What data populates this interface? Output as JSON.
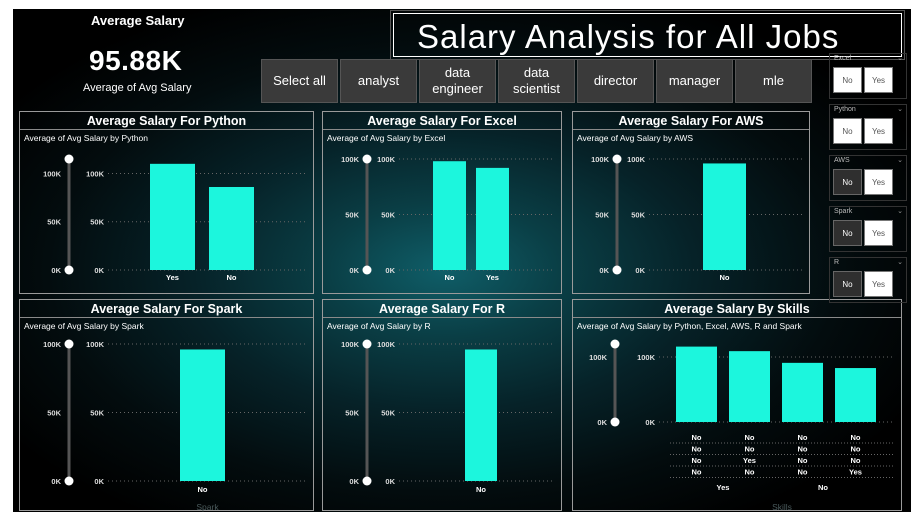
{
  "kpi": {
    "title": "Average Salary",
    "value": "95.88K",
    "subtitle": "Average of Avg Salary"
  },
  "page_title": "Salary Analysis for All Jobs",
  "job_buttons": [
    "Select all",
    "analyst",
    "data\nengineer",
    "data\nscientist",
    "director",
    "manager",
    "mle"
  ],
  "skill_slicers": [
    {
      "label": "Excel",
      "options": [
        "No",
        "Yes"
      ],
      "selected": []
    },
    {
      "label": "Python",
      "options": [
        "No",
        "Yes"
      ],
      "selected": []
    },
    {
      "label": "AWS",
      "options": [
        "No",
        "Yes"
      ],
      "selected": [
        "No"
      ]
    },
    {
      "label": "Spark",
      "options": [
        "No",
        "Yes"
      ],
      "selected": [
        "No"
      ]
    },
    {
      "label": "R",
      "options": [
        "No",
        "Yes"
      ],
      "selected": [
        "No"
      ]
    }
  ],
  "colors": {
    "bar": "#1cf6dd",
    "slider": "#555555"
  },
  "panels": [
    {
      "title": "Average Salary For Python",
      "subtitle": "Average of Avg Salary by Python"
    },
    {
      "title": "Average Salary For Excel",
      "subtitle": "Average of Avg Salary by Excel"
    },
    {
      "title": "Average Salary For AWS",
      "subtitle": "Average of Avg Salary by AWS"
    },
    {
      "title": "Average Salary For Spark",
      "subtitle": "Average of Avg Salary by Spark"
    },
    {
      "title": "Average Salary For R",
      "subtitle": "Average of Avg Salary by R"
    },
    {
      "title": "Average Salary By Skills",
      "subtitle": "Average of Avg Salary by Python, Excel, AWS, R and Spark"
    }
  ],
  "chart_data": [
    {
      "type": "bar",
      "title": "Average Salary For Python",
      "categories": [
        "Yes",
        "No"
      ],
      "values": [
        110000,
        86000
      ],
      "ylim": [
        0,
        115000
      ],
      "yticks": [
        "0K",
        "50K",
        "100K"
      ],
      "slider_ticks": [
        "0K",
        "50K",
        "100K"
      ],
      "xlabel": "",
      "grid": true
    },
    {
      "type": "bar",
      "title": "Average Salary For Excel",
      "categories": [
        "No",
        "Yes"
      ],
      "values": [
        98000,
        92000
      ],
      "ylim": [
        0,
        100000
      ],
      "yticks": [
        "0K",
        "50K",
        "100K"
      ],
      "slider_ticks": [
        "0K",
        "50K",
        "100K"
      ],
      "xlabel": "",
      "grid": true
    },
    {
      "type": "bar",
      "title": "Average Salary For AWS",
      "categories": [
        "No"
      ],
      "values": [
        96000
      ],
      "ylim": [
        0,
        100000
      ],
      "yticks": [
        "0K",
        "50K",
        "100K"
      ],
      "slider_ticks": [
        "0K",
        "50K",
        "100K"
      ],
      "xlabel": "",
      "grid": true
    },
    {
      "type": "bar",
      "title": "Average Salary For Spark",
      "categories": [
        "No"
      ],
      "values": [
        96000
      ],
      "ylim": [
        0,
        100000
      ],
      "yticks": [
        "0K",
        "50K",
        "100K"
      ],
      "slider_ticks": [
        "0K",
        "50K",
        "100K"
      ],
      "xlabel": "Spark",
      "grid": true
    },
    {
      "type": "bar",
      "title": "Average Salary For R",
      "categories": [
        "No"
      ],
      "values": [
        96000
      ],
      "ylim": [
        0,
        100000
      ],
      "yticks": [
        "0K",
        "50K",
        "100K"
      ],
      "slider_ticks": [
        "0K",
        "50K",
        "100K"
      ],
      "xlabel": "",
      "grid": true
    },
    {
      "type": "bar",
      "title": "Average Salary By Skills",
      "categories": [
        "No/No/No/No/Yes",
        "No/No/Yes/No/Yes",
        "No/No/No/No/No",
        "No/No/No/Yes/No"
      ],
      "category_levels": [
        [
          "No",
          "No",
          "No",
          "No"
        ],
        [
          "No",
          "No",
          "No",
          "No"
        ],
        [
          "No",
          "Yes",
          "No",
          "No"
        ],
        [
          "No",
          "No",
          "No",
          "Yes"
        ]
      ],
      "top_level_groups": [
        "Yes",
        "No"
      ],
      "values": [
        116000,
        109000,
        91000,
        83000
      ],
      "ylim": [
        0,
        120000
      ],
      "yticks": [
        "0K",
        "100K"
      ],
      "slider_ticks": [
        "0K",
        "100K"
      ],
      "xlabel": "Skills",
      "grid": true
    }
  ]
}
